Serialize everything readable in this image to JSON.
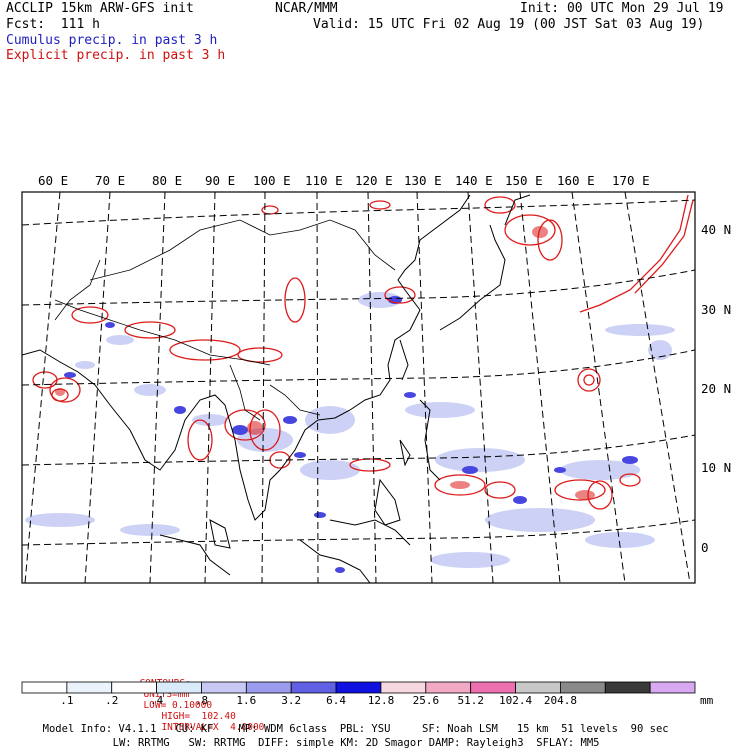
{
  "header": {
    "model": "ACCLIP 15km ARW-GFS init",
    "forecast": "Fcst:  111 h",
    "center": "NCAR/MMM",
    "init": "Init: 00 UTC Mon 29 Jul 19",
    "valid": "Valid: 15 UTC Fri 02 Aug 19 (00 JST Sat 03 Aug 19)",
    "legend_cumulus": "Cumulus precip. in past 3 h",
    "legend_explicit": "Explicit precip. in past 3 h"
  },
  "map": {
    "lon_labels": [
      "60 E",
      "70 E",
      "80 E",
      "90 E",
      "100 E",
      "110 E",
      "120 E",
      "130 E",
      "140 E",
      "150 E",
      "160 E",
      "170 E"
    ],
    "lat_labels": [
      "40 N",
      "30 N",
      "20 N",
      "10 N",
      "0"
    ],
    "colors": {
      "coast": "#000000",
      "grid": "#000000",
      "cumulus": "#2a2ad8",
      "explicit": "#dd1a1a"
    }
  },
  "contours": {
    "label": "CONTOURS:",
    "units": "UNITS=mm",
    "low": "LOW= 0.10000",
    "high": "HIGH=  102.40",
    "interval": "INTERVAL=X  4.0000"
  },
  "colorbar": {
    "unit": "mm",
    "labels": [
      ".1",
      ".2",
      ".4",
      ".8",
      "1.6",
      "3.2",
      "6.4",
      "12.8",
      "25.6",
      "51.2",
      "102.4",
      "204.8"
    ],
    "colors": [
      "#ffffff",
      "#eaf2fb",
      "#ffffff",
      "#d9ebfa",
      "#c8c8f4",
      "#9c9cee",
      "#6060e4",
      "#1010e0",
      "#f7d8e0",
      "#f2a9c4",
      "#ec70b0",
      "#c8c8c8",
      "#8a8a8a",
      "#3a3a3a",
      "#d8a8f0"
    ]
  },
  "model_info": {
    "line1": [
      "Model Info: V4.1.1",
      "CU: KF",
      "MP: WDM 6class",
      "PBL: YSU",
      "SF: Noah LSM",
      "15 km",
      "51 levels",
      "90 sec"
    ],
    "line2": [
      "LW: RRTMG",
      "SW: RRTMG",
      "DIFF: simple",
      "KM: 2D Smagor",
      "DAMP: Rayleigh3",
      "SFLAY: MM5"
    ]
  }
}
